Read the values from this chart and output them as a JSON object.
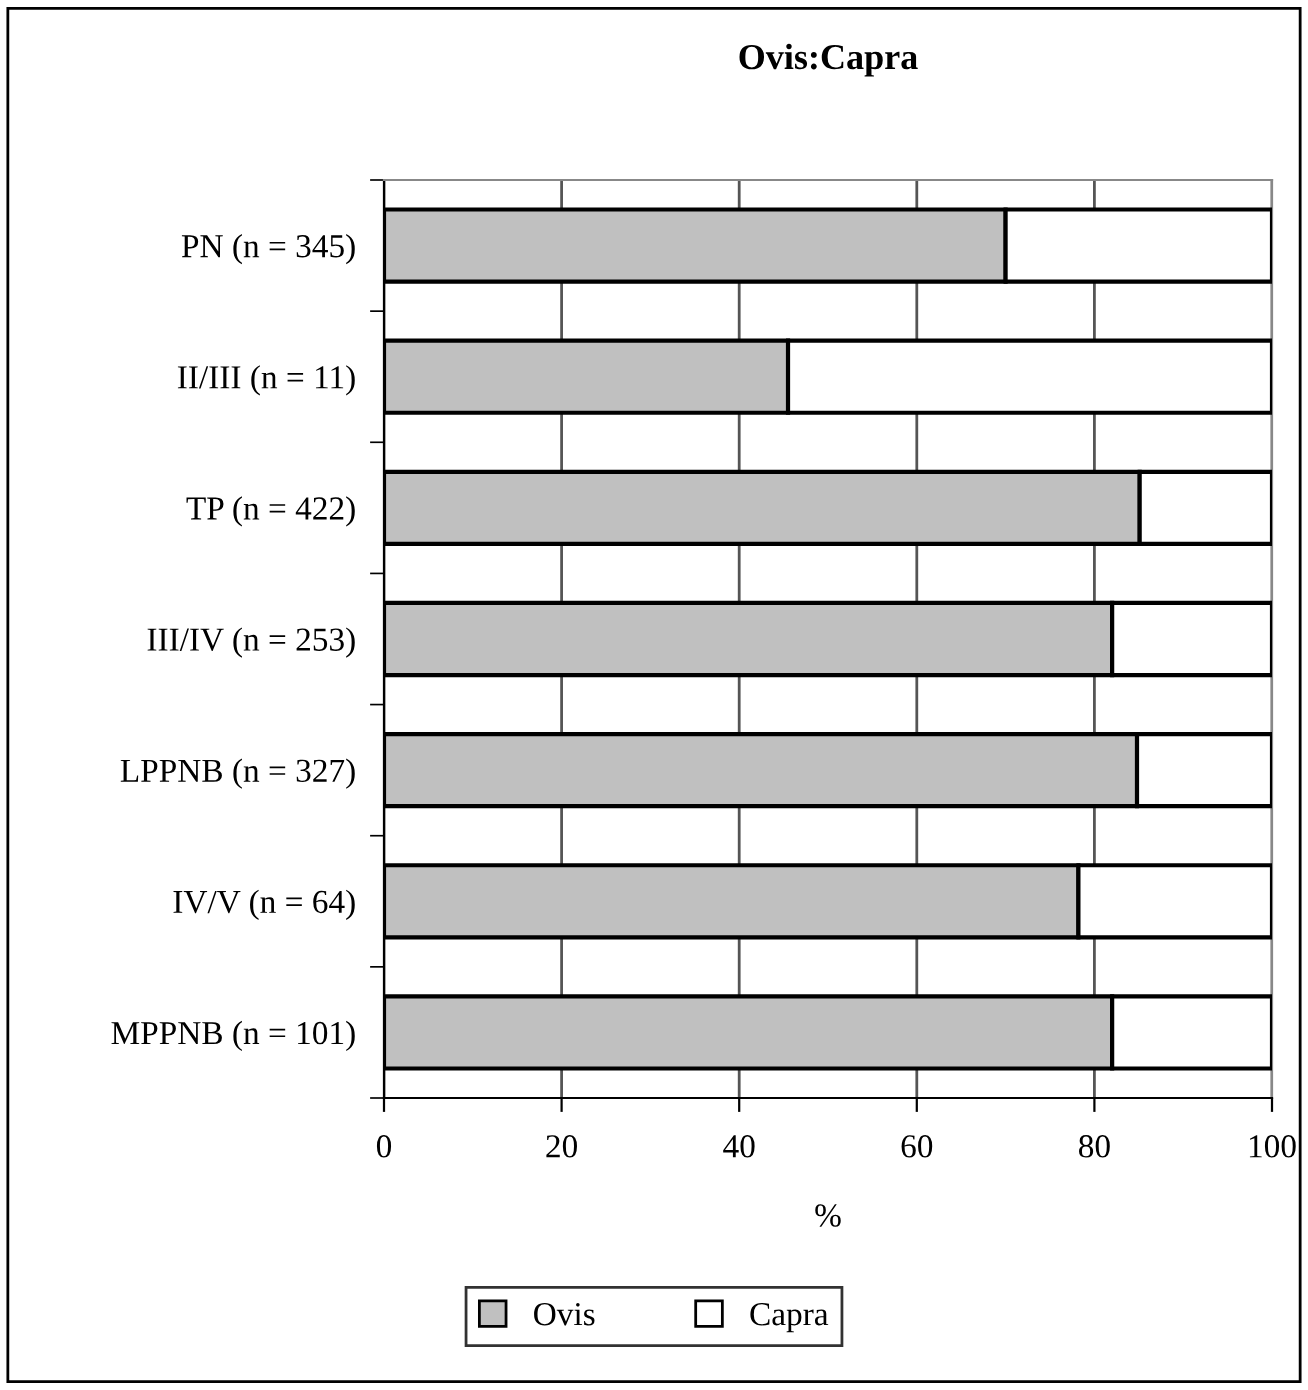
{
  "chart_data": {
    "type": "bar",
    "title": "Ovis:Capra",
    "xlabel": "%",
    "orientation": "horizontal",
    "stacked": true,
    "categories": [
      "PN (n = 345)",
      "II/III (n = 11)",
      "TP (n = 422)",
      "III/IV (n = 253)",
      "LPPNB (n = 327)",
      "IV/V (n = 64)",
      "MPPNB (n = 101)"
    ],
    "series": [
      {
        "name": "Ovis",
        "color": "#c0c0c0",
        "values": [
          70,
          45.5,
          85.1,
          82,
          84.8,
          78.2,
          82
        ]
      },
      {
        "name": "Capra",
        "color": "#ffffff",
        "values": [
          30,
          54.5,
          14.9,
          18,
          15.2,
          21.8,
          18
        ]
      }
    ],
    "xlim": [
      0,
      100
    ],
    "xticks": [
      0,
      20,
      40,
      60,
      80,
      100
    ],
    "grid": "x",
    "legend": "bottom"
  }
}
